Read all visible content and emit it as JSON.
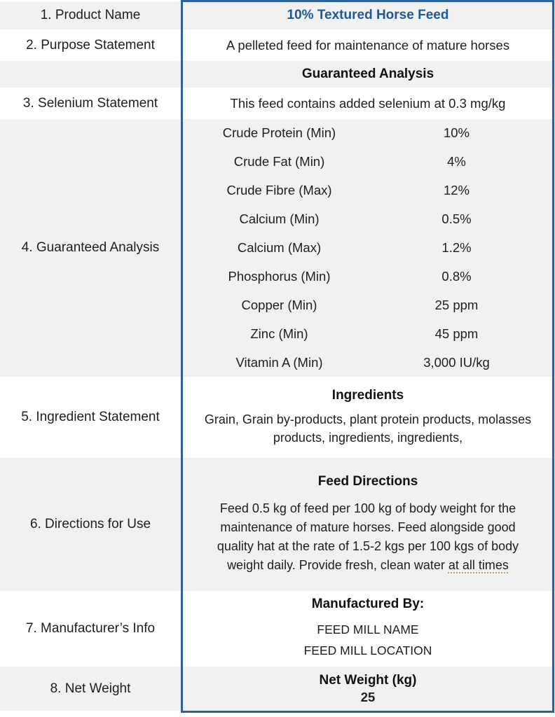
{
  "colors": {
    "title_blue": "#1b5a99",
    "frame_blue": "#2d6394",
    "band_gray": "#f1f1f1"
  },
  "rows": {
    "product_name": {
      "label": "1. Product Name",
      "value": "10% Textured Horse Feed"
    },
    "purpose": {
      "label": "2. Purpose Statement",
      "value": "A pelleted feed for maintenance of mature horses"
    },
    "ga_header": {
      "label": "",
      "value": "Guaranteed Analysis"
    },
    "selenium": {
      "label": "3. Selenium Statement",
      "value": "This feed contains added selenium at 0.3 mg/kg"
    },
    "analysis": {
      "label": "4. Guaranteed Analysis",
      "items": [
        {
          "name": "Crude Protein (Min)",
          "value": "10%"
        },
        {
          "name": "Crude Fat (Min)",
          "value": "4%"
        },
        {
          "name": "Crude Fibre (Max)",
          "value": "12%"
        },
        {
          "name": "Calcium (Min)",
          "value": "0.5%"
        },
        {
          "name": "Calcium (Max)",
          "value": "1.2%"
        },
        {
          "name": "Phosphorus (Min)",
          "value": "0.8%"
        },
        {
          "name": "Copper (Min)",
          "value": "25 ppm"
        },
        {
          "name": "Zinc (Min)",
          "value": "45 ppm"
        },
        {
          "name": "Vitamin A (Min)",
          "value": "3,000 IU/kg"
        }
      ]
    },
    "ingredients": {
      "label": "5. Ingredient Statement",
      "header": "Ingredients",
      "body": "Grain, Grain by-products, plant protein products, molasses products, ingredients, ingredients,"
    },
    "directions": {
      "label": "6. Directions for Use",
      "header": "Feed Directions",
      "body_main": "Feed 0.5 kg of feed per 100 kg of body weight for the maintenance of mature horses. Feed alongside good quality hat at the rate of 1.5-2 kgs per 100 kgs of body weight daily. Provide fresh, clean water ",
      "body_underlined": "at all times"
    },
    "manufacturer": {
      "label": "7. Manufacturer’s Info",
      "header": "Manufactured By:",
      "line1": "FEED MILL NAME",
      "line2": "FEED MILL LOCATION"
    },
    "net_weight": {
      "label": "8. Net Weight",
      "header": "Net Weight (kg)",
      "value": "25"
    }
  }
}
